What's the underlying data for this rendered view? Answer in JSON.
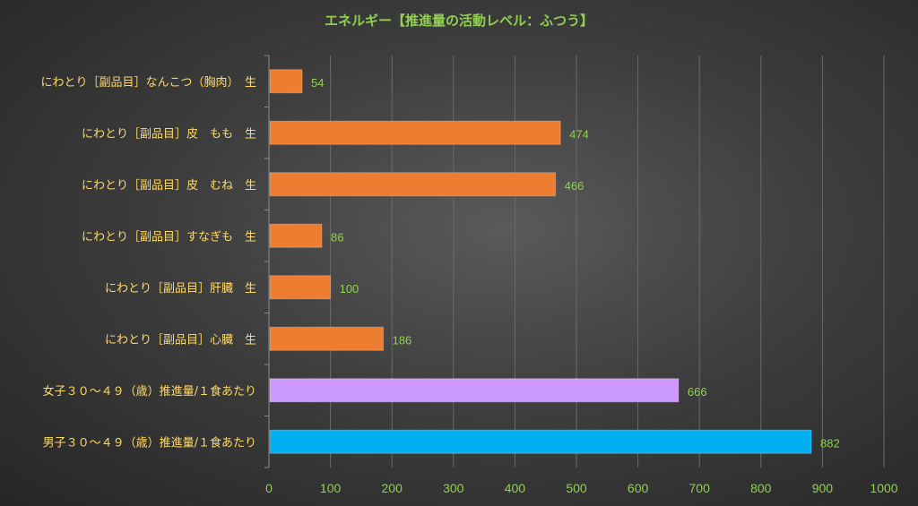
{
  "chart_data": {
    "type": "bar",
    "orientation": "horizontal",
    "title": "エネルギー【推進量の活動レベル：ふつう】",
    "categories": [
      "にわとり［副品目］なんこつ（胸肉）　生",
      "にわとり［副品目］皮　もも　生",
      "にわとり［副品目］皮　むね　生",
      "にわとり［副品目］すなぎも　生",
      "にわとり［副品目］肝臓　生",
      "にわとり［副品目］心臓　生",
      "女子３０～４９（歳）推進量/１食あたり",
      "男子３０～４９（歳）推進量/１食あたり"
    ],
    "values": [
      54,
      474,
      466,
      86,
      100,
      186,
      666,
      882
    ],
    "bar_colors": [
      "#ed7d31",
      "#ed7d31",
      "#ed7d31",
      "#ed7d31",
      "#ed7d31",
      "#ed7d31",
      "#cc99ff",
      "#00b0f0"
    ],
    "xlim": [
      0,
      1000
    ],
    "xticks": [
      0,
      100,
      200,
      300,
      400,
      500,
      600,
      700,
      800,
      900,
      1000
    ],
    "grid": true,
    "data_labels": true,
    "colors": {
      "label_text": "#ffd966",
      "axis_text": "#92d050",
      "title_text": "#92d050",
      "gridline": "#6a6a6a"
    }
  }
}
